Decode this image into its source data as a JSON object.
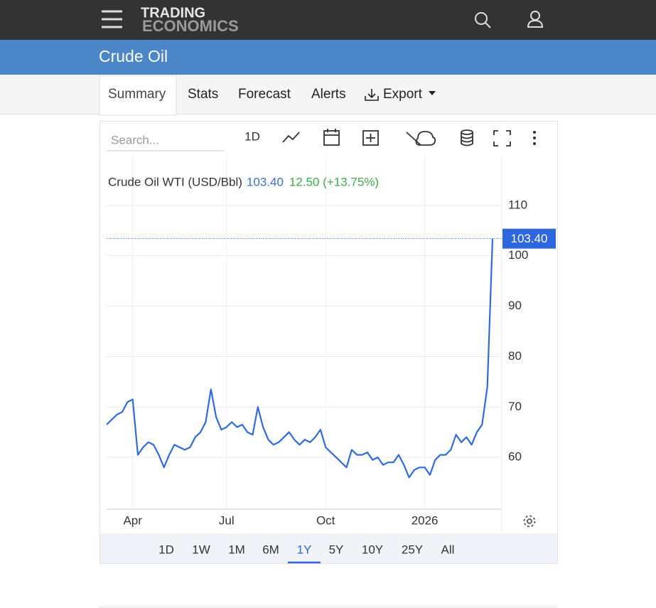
{
  "header": {
    "logo_top": "TRADING",
    "logo_bottom": "ECONOMICS"
  },
  "page_title": "Crude Oil",
  "tabs": [
    "Summary",
    "Stats",
    "Forecast",
    "Alerts",
    "Export"
  ],
  "active_tab": 0,
  "toolbar": {
    "search_placeholder": "Search...",
    "interval": "1D"
  },
  "chart_data": {
    "type": "line",
    "categories": [
      null,
      null,
      null,
      null,
      null,
      "Apr",
      null,
      null,
      null,
      null,
      null,
      null,
      null,
      null,
      null,
      null,
      null,
      null,
      null,
      null,
      null,
      null,
      null,
      "Jul",
      null,
      null,
      null,
      null,
      null,
      null,
      null,
      null,
      null,
      null,
      null,
      null,
      null,
      null,
      null,
      null,
      null,
      null,
      "Oct",
      null,
      null,
      null,
      null,
      null,
      null,
      null,
      null,
      null,
      null,
      null,
      null,
      null,
      null,
      null,
      null,
      null,
      null,
      "2026",
      null,
      null,
      null,
      null,
      null,
      null,
      null,
      null,
      null,
      null,
      null,
      null,
      null
    ],
    "series": [
      {
        "name": "Crude Oil WTI (USD/Bbl)",
        "color": "#2f6be0",
        "values": [
          66.5,
          67.5,
          68.5,
          69,
          71,
          71.5,
          60.5,
          62,
          63,
          62.5,
          60.5,
          58,
          60.5,
          62.5,
          62,
          61.5,
          62,
          64,
          65,
          67,
          73.5,
          68,
          65.5,
          66,
          67,
          66,
          66.5,
          65,
          64.5,
          70,
          66,
          63.5,
          62.5,
          63,
          64,
          65,
          63.5,
          62.5,
          63.5,
          63,
          64,
          65.5,
          62,
          61,
          60,
          59,
          58,
          61.5,
          60.5,
          60.5,
          61,
          59.5,
          60,
          58.5,
          59,
          59,
          60.5,
          58.5,
          56,
          57.5,
          58,
          58,
          56.5,
          59.5,
          60.5,
          60.5,
          61.5,
          64.5,
          63,
          64,
          62.5,
          65,
          66.5,
          74,
          103.4
        ]
      }
    ],
    "price_label": "103.40",
    "change_label": "12.50 (+13.75%)",
    "ylim": [
      50,
      120
    ],
    "yticks": [
      60,
      70,
      80,
      90,
      100,
      110
    ],
    "grid": true
  },
  "ranges": [
    "1D",
    "1W",
    "1M",
    "6M",
    "1Y",
    "5Y",
    "10Y",
    "25Y",
    "All"
  ],
  "active_range": 4
}
